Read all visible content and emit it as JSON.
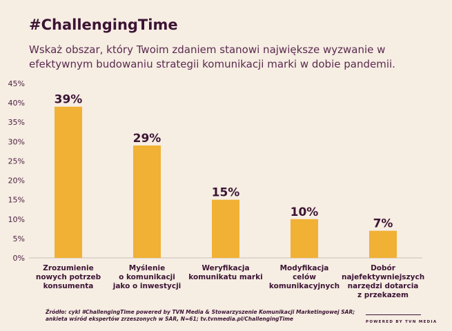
{
  "header": {
    "title": "#ChallengingTime",
    "subtitle": "Wskaż obszar, który Twoim zdaniem stanowi największe wyzwanie w efektywnym budowaniu strategii komunikacji marki w dobie pandemii."
  },
  "chart_data": {
    "type": "bar",
    "categories": [
      "Zrozumienie\nnowych potrzeb\nkonsumenta",
      "Myślenie\no komunikacji\njako o inwestycji",
      "Weryfikacja\nkomunikatu marki",
      "Modyfikacja\ncelów\nkomunikacyjnych",
      "Dobór\nnajefektywniejszych\nnarzędzi dotarcia\nz przekazem"
    ],
    "values": [
      39,
      29,
      15,
      10,
      7
    ],
    "data_labels": [
      "39%",
      "29%",
      "15%",
      "10%",
      "7%"
    ],
    "ylim": [
      0,
      45
    ],
    "yticks": [
      0,
      5,
      10,
      15,
      20,
      25,
      30,
      35,
      40,
      45
    ],
    "ytick_labels": [
      "0%",
      "5%",
      "10%",
      "15%",
      "20%",
      "25%",
      "30%",
      "35%",
      "40%",
      "45%"
    ],
    "grid": false,
    "bar_color": "#f0b135"
  },
  "footer": {
    "source": "Źródło: cykl #ChallengingTime powered by TVN Media & Stowarzyszenie Komunikacji Marketingowej SAR;\nankieta wśród ekspertów zrzeszonych w SAR, N=61; tv.tvnmedia.pl/ChallengingTime",
    "powered": "POWERED BY TVN MEDIA"
  }
}
